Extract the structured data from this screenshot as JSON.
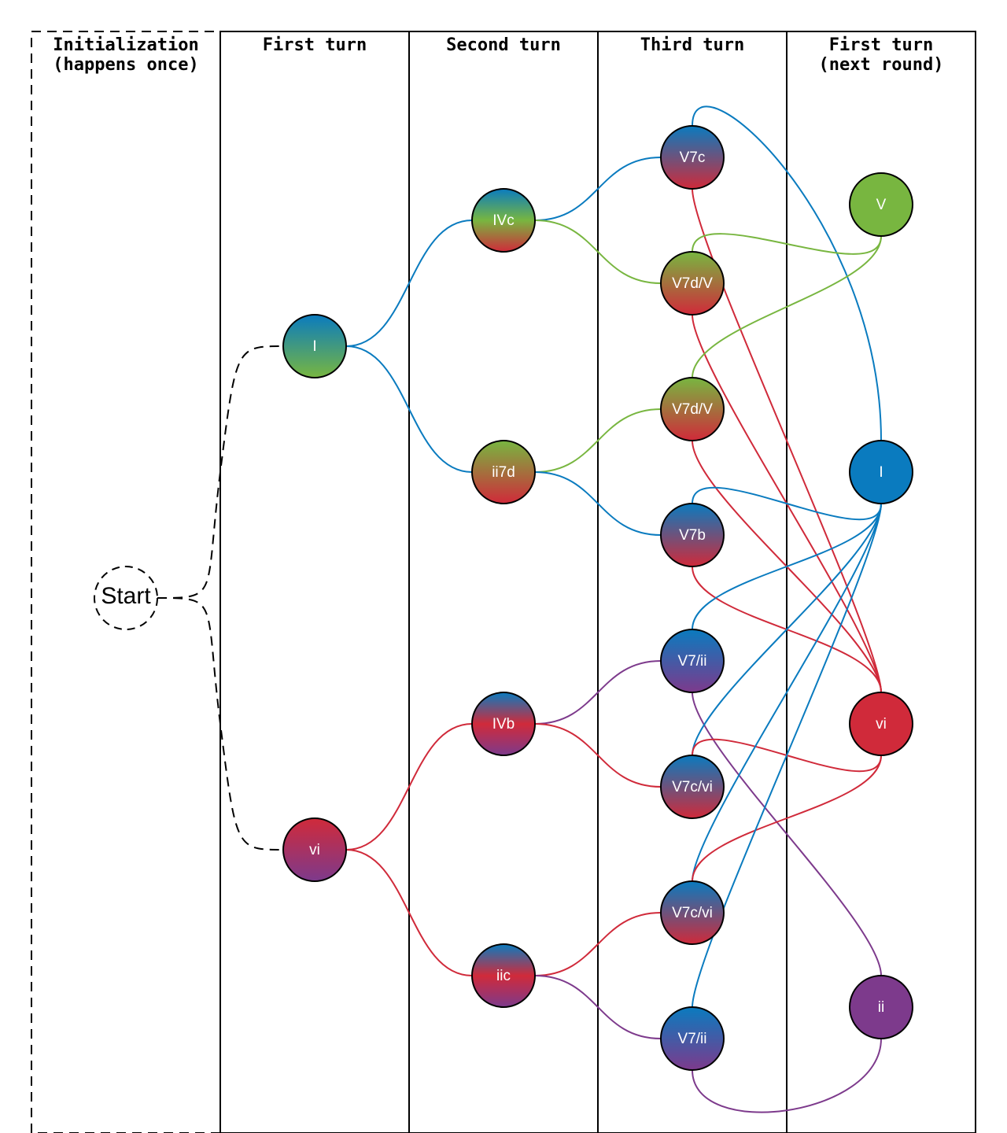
{
  "columns": [
    {
      "id": "init",
      "title_lines": [
        "Initialization",
        "(happens once)"
      ]
    },
    {
      "id": "first",
      "title_lines": [
        "First turn"
      ]
    },
    {
      "id": "second",
      "title_lines": [
        "Second turn"
      ]
    },
    {
      "id": "third",
      "title_lines": [
        "Third turn"
      ]
    },
    {
      "id": "next",
      "title_lines": [
        "First turn",
        "(next round)"
      ]
    }
  ],
  "colors": {
    "blue": "#0a7bbf",
    "green": "#78b640",
    "red": "#d02a3a",
    "purple": "#7d3a8c"
  },
  "start_label": "Start",
  "nodes": [
    {
      "id": "f_I",
      "label": "I",
      "gradient": [
        "blue",
        "green"
      ]
    },
    {
      "id": "f_vi",
      "label": "vi",
      "gradient": [
        "red",
        "purple"
      ]
    },
    {
      "id": "s_IVc",
      "label": "IVc",
      "gradient": [
        "blue",
        "green",
        "red"
      ]
    },
    {
      "id": "s_ii7d",
      "label": "ii7d",
      "gradient": [
        "green",
        "red"
      ]
    },
    {
      "id": "s_IVb",
      "label": "IVb",
      "gradient": [
        "blue",
        "red",
        "purple"
      ]
    },
    {
      "id": "s_iic",
      "label": "iic",
      "gradient": [
        "blue",
        "red",
        "purple"
      ]
    },
    {
      "id": "t_V7c",
      "label": "V7c",
      "gradient": [
        "blue",
        "red"
      ]
    },
    {
      "id": "t_V7dV_a",
      "label": "V7d/V",
      "gradient": [
        "green",
        "red"
      ]
    },
    {
      "id": "t_V7dV_b",
      "label": "V7d/V",
      "gradient": [
        "green",
        "red"
      ]
    },
    {
      "id": "t_V7b",
      "label": "V7b",
      "gradient": [
        "blue",
        "red"
      ]
    },
    {
      "id": "t_V7ii_a",
      "label": "V7/ii",
      "gradient": [
        "blue",
        "purple"
      ]
    },
    {
      "id": "t_V7cvi_a",
      "label": "V7c/vi",
      "gradient": [
        "blue",
        "red"
      ]
    },
    {
      "id": "t_V7cvi_b",
      "label": "V7c/vi",
      "gradient": [
        "blue",
        "red"
      ]
    },
    {
      "id": "t_V7ii_b",
      "label": "V7/ii",
      "gradient": [
        "blue",
        "purple"
      ]
    },
    {
      "id": "n_V",
      "label": "V",
      "gradient": [
        "green"
      ]
    },
    {
      "id": "n_I",
      "label": "I",
      "gradient": [
        "blue"
      ]
    },
    {
      "id": "n_vi",
      "label": "vi",
      "gradient": [
        "red"
      ]
    },
    {
      "id": "n_ii",
      "label": "ii",
      "gradient": [
        "purple"
      ]
    }
  ],
  "edges": [
    {
      "from": "start",
      "to": "f_I",
      "color": "black",
      "dashed": true
    },
    {
      "from": "start",
      "to": "f_vi",
      "color": "black",
      "dashed": true
    },
    {
      "from": "f_I",
      "to": "s_IVc",
      "color": "blue"
    },
    {
      "from": "f_I",
      "to": "s_ii7d",
      "color": "blue"
    },
    {
      "from": "f_vi",
      "to": "s_IVb",
      "color": "red"
    },
    {
      "from": "f_vi",
      "to": "s_iic",
      "color": "red"
    },
    {
      "from": "s_IVc",
      "to": "t_V7c",
      "color": "blue"
    },
    {
      "from": "s_IVc",
      "to": "t_V7dV_a",
      "color": "green"
    },
    {
      "from": "s_ii7d",
      "to": "t_V7dV_b",
      "color": "green"
    },
    {
      "from": "s_ii7d",
      "to": "t_V7b",
      "color": "blue"
    },
    {
      "from": "s_IVb",
      "to": "t_V7ii_a",
      "color": "purple"
    },
    {
      "from": "s_IVb",
      "to": "t_V7cvi_a",
      "color": "red"
    },
    {
      "from": "s_iic",
      "to": "t_V7cvi_b",
      "color": "red"
    },
    {
      "from": "s_iic",
      "to": "t_V7ii_b",
      "color": "purple"
    },
    {
      "from": "t_V7c",
      "to": "n_I",
      "color": "blue"
    },
    {
      "from": "t_V7c",
      "to": "n_vi",
      "color": "red"
    },
    {
      "from": "t_V7dV_a",
      "to": "n_V",
      "color": "green"
    },
    {
      "from": "t_V7dV_a",
      "to": "n_vi",
      "color": "red"
    },
    {
      "from": "t_V7dV_b",
      "to": "n_V",
      "color": "green"
    },
    {
      "from": "t_V7dV_b",
      "to": "n_vi",
      "color": "red"
    },
    {
      "from": "t_V7b",
      "to": "n_I",
      "color": "blue"
    },
    {
      "from": "t_V7b",
      "to": "n_vi",
      "color": "red"
    },
    {
      "from": "t_V7ii_a",
      "to": "n_I",
      "color": "blue"
    },
    {
      "from": "t_V7ii_a",
      "to": "n_ii",
      "color": "purple"
    },
    {
      "from": "t_V7cvi_a",
      "to": "n_I",
      "color": "blue"
    },
    {
      "from": "t_V7cvi_a",
      "to": "n_vi",
      "color": "red"
    },
    {
      "from": "t_V7cvi_b",
      "to": "n_I",
      "color": "blue"
    },
    {
      "from": "t_V7cvi_b",
      "to": "n_vi",
      "color": "red"
    },
    {
      "from": "t_V7ii_b",
      "to": "n_I",
      "color": "blue"
    },
    {
      "from": "t_V7ii_b",
      "to": "n_ii",
      "color": "purple"
    }
  ]
}
